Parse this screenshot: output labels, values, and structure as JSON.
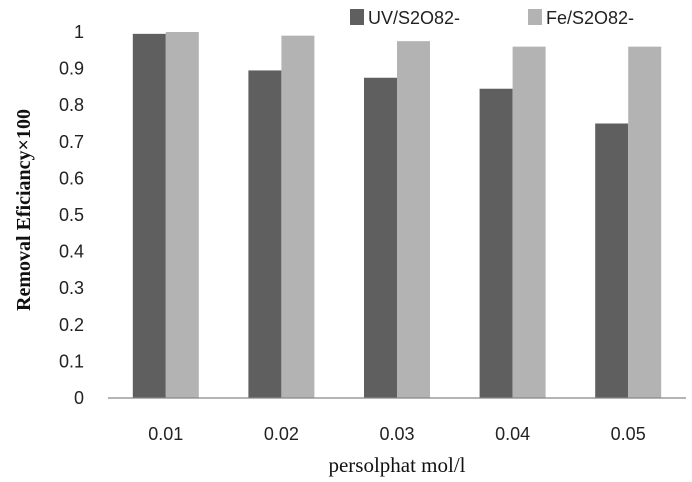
{
  "chart_data": {
    "type": "bar",
    "title": "",
    "xlabel": "persolphat mol/l",
    "ylabel": "Removal Eficiancy×100",
    "categories": [
      "0.01",
      "0.02",
      "0.03",
      "0.04",
      "0.05"
    ],
    "ylim": [
      0,
      1
    ],
    "yticks": [
      "0",
      "0.1",
      "0.2",
      "0.3",
      "0.4",
      "0.5",
      "0.6",
      "0.7",
      "0.8",
      "0.9",
      "1"
    ],
    "grid": false,
    "legend_position": "top-right",
    "series": [
      {
        "name": "UV/S2O82-",
        "color": "#5f5f5f",
        "values": [
          0.995,
          0.895,
          0.875,
          0.845,
          0.75
        ]
      },
      {
        "name": "Fe/S2O82-",
        "color": "#b3b3b3",
        "values": [
          1.0,
          0.99,
          0.975,
          0.96,
          0.96
        ]
      }
    ]
  }
}
